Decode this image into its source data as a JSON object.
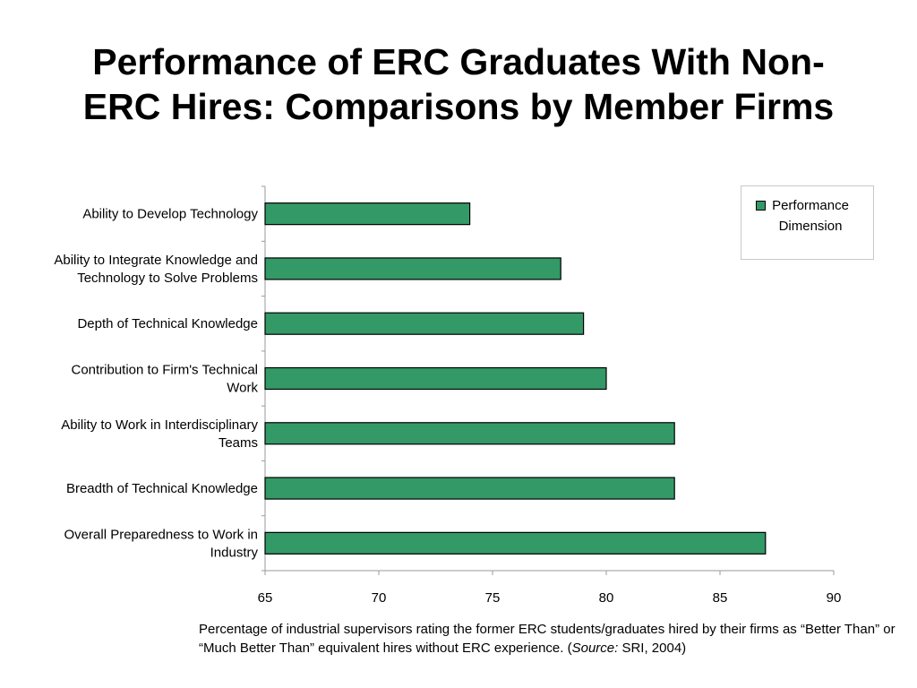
{
  "slide": {
    "title_line1": "Performance of ERC Graduates With Non-",
    "title_line2": "ERC Hires: Comparisons by Member Firms"
  },
  "chart_data": {
    "type": "bar",
    "orientation": "horizontal",
    "categories": [
      [
        "Ability to Develop Technology"
      ],
      [
        "Ability to Integrate Knowledge and",
        "Technology to Solve Problems"
      ],
      [
        "Depth of Technical Knowledge"
      ],
      [
        "Contribution to Firm's Technical",
        "Work"
      ],
      [
        "Ability to Work in Interdisciplinary",
        "Teams"
      ],
      [
        "Breadth of Technical Knowledge"
      ],
      [
        "Overall Preparedness to Work in",
        "Industry"
      ]
    ],
    "series": [
      {
        "name": "Performance Dimension",
        "values": [
          74,
          78,
          79,
          80,
          83,
          83,
          87
        ],
        "color": "#339966"
      }
    ],
    "xlim": [
      65,
      90
    ],
    "xticks": [
      "65",
      "70",
      "75",
      "80",
      "85",
      "90"
    ],
    "grid": false,
    "legend_position": "top-right"
  },
  "legend": {
    "text": "Performance Dimension"
  },
  "footnote": {
    "text_before": "Percentage of industrial supervisors rating the former ERC students/graduates hired by their firms as “Better Than” or “Much Better Than” equivalent hires without ERC experience. (",
    "source_label": "Source:",
    "text_after": " SRI, 2004)"
  }
}
